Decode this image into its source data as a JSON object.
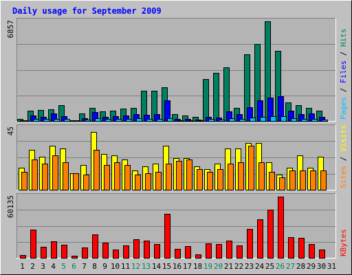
{
  "title": "Daily usage for September 2009",
  "colors": {
    "background": "#c0c0c0",
    "panel": "#b4b4b4",
    "hits": "#008060",
    "files": "#0000ff",
    "pages": "#00c0ff",
    "visits": "#ffff00",
    "sites": "#ff8000",
    "kbytes": "#ff0000",
    "title_text": "#0000ff",
    "weekend_label": "#00805c"
  },
  "chart_data": [
    {
      "type": "bar",
      "panel": "hits-files-pages",
      "ymax_label": "6857",
      "legend": [
        {
          "text": "Pages",
          "color": "#00c0ff"
        },
        {
          "text": " / ",
          "color": "#000000"
        },
        {
          "text": "Files",
          "color": "#0000ff"
        },
        {
          "text": " / ",
          "color": "#000000"
        },
        {
          "text": "Hits",
          "color": "#008060"
        }
      ],
      "ylim": [
        0,
        6857
      ],
      "series": [
        {
          "key": "hits",
          "values": [
            120,
            700,
            750,
            800,
            1100,
            50,
            500,
            900,
            650,
            700,
            850,
            900,
            2100,
            2100,
            2300,
            450,
            400,
            300,
            2900,
            3300,
            3700,
            900,
            4600,
            5300,
            6857,
            4800,
            1300,
            1100,
            900,
            700
          ]
        },
        {
          "key": "files",
          "values": [
            60,
            400,
            300,
            500,
            350,
            20,
            200,
            600,
            300,
            350,
            400,
            450,
            420,
            450,
            1400,
            150,
            120,
            100,
            300,
            250,
            650,
            450,
            950,
            1400,
            1600,
            1700,
            700,
            450,
            500,
            300
          ]
        },
        {
          "key": "pages",
          "values": [
            20,
            150,
            120,
            150,
            120,
            10,
            80,
            200,
            120,
            140,
            160,
            170,
            150,
            160,
            200,
            60,
            50,
            40,
            120,
            100,
            180,
            150,
            250,
            300,
            320,
            350,
            200,
            150,
            160,
            100
          ]
        }
      ]
    },
    {
      "type": "bar",
      "panel": "visits-sites",
      "ymax_label": "45",
      "legend": [
        {
          "text": "Sites",
          "color": "#ff8000"
        },
        {
          "text": " / ",
          "color": "#000000"
        },
        {
          "text": "Visits",
          "color": "#ffff00"
        }
      ],
      "ylim": [
        0,
        45
      ],
      "series": [
        {
          "key": "visits",
          "values": [
            16,
            29,
            24,
            32,
            30,
            12,
            18,
            42,
            26,
            25,
            22,
            14,
            17,
            19,
            32,
            23,
            23,
            17,
            15,
            19,
            30,
            30,
            34,
            34,
            20,
            11,
            16,
            25,
            16,
            24
          ]
        },
        {
          "key": "sites",
          "values": [
            13,
            22,
            19,
            25,
            20,
            12,
            11,
            29,
            18,
            20,
            18,
            11,
            12,
            13,
            19,
            21,
            22,
            15,
            13,
            15,
            19,
            20,
            32,
            20,
            13,
            9,
            14,
            14,
            14,
            14
          ]
        }
      ]
    },
    {
      "type": "bar",
      "panel": "kbytes",
      "ymax_label": "60135",
      "legend": [
        {
          "text": "KBytes",
          "color": "#ff0000"
        }
      ],
      "ylim": [
        0,
        60135
      ],
      "series": [
        {
          "key": "kbytes",
          "values": [
            2500,
            28000,
            10500,
            16000,
            13000,
            1800,
            10000,
            23000,
            15000,
            8000,
            12000,
            18500,
            17000,
            13500,
            43000,
            8500,
            11500,
            3500,
            14500,
            13500,
            17000,
            12000,
            28500,
            38000,
            47000,
            60135,
            20000,
            19500,
            13500,
            8000
          ]
        }
      ]
    }
  ],
  "x_labels": [
    {
      "text": "1",
      "weekend": false
    },
    {
      "text": "2",
      "weekend": false
    },
    {
      "text": "3",
      "weekend": false
    },
    {
      "text": "4",
      "weekend": false
    },
    {
      "text": "5",
      "weekend": true
    },
    {
      "text": "6",
      "weekend": true
    },
    {
      "text": "7",
      "weekend": false
    },
    {
      "text": "8",
      "weekend": false
    },
    {
      "text": "9",
      "weekend": false
    },
    {
      "text": "10",
      "weekend": false
    },
    {
      "text": "11",
      "weekend": false
    },
    {
      "text": "12",
      "weekend": true
    },
    {
      "text": "13",
      "weekend": true
    },
    {
      "text": "14",
      "weekend": false
    },
    {
      "text": "15",
      "weekend": false
    },
    {
      "text": "16",
      "weekend": false
    },
    {
      "text": "17",
      "weekend": false
    },
    {
      "text": "18",
      "weekend": false
    },
    {
      "text": "19",
      "weekend": true
    },
    {
      "text": "20",
      "weekend": true
    },
    {
      "text": "21",
      "weekend": false
    },
    {
      "text": "22",
      "weekend": false
    },
    {
      "text": "23",
      "weekend": false
    },
    {
      "text": "24",
      "weekend": false
    },
    {
      "text": "25",
      "weekend": false
    },
    {
      "text": "26",
      "weekend": true
    },
    {
      "text": "27",
      "weekend": true
    },
    {
      "text": "28",
      "weekend": false
    },
    {
      "text": "29",
      "weekend": false
    },
    {
      "text": "30",
      "weekend": false
    },
    {
      "text": "31",
      "weekend": false
    }
  ]
}
